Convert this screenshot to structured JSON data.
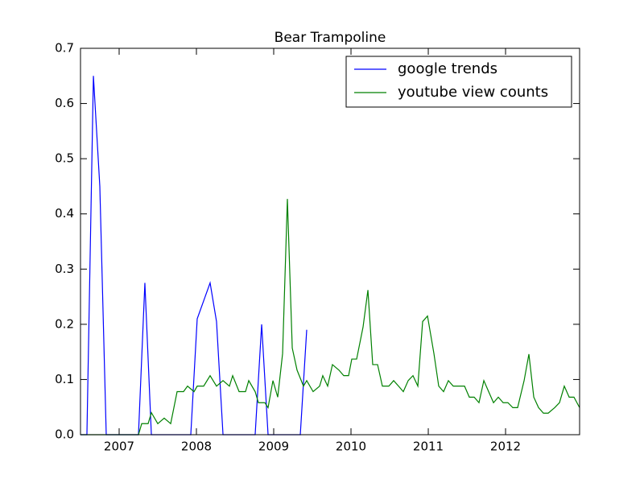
{
  "chart_data": {
    "type": "line",
    "title": "Bear Trampoline",
    "xlim": [
      2006.5,
      2012.958
    ],
    "xticks": [
      2007,
      2008,
      2009,
      2010,
      2011,
      2012
    ],
    "ylim": [
      0,
      0.7
    ],
    "yticks": [
      {
        "value": 0,
        "label": "0.0"
      },
      0.1,
      0.2,
      0.3,
      0.4,
      0.5,
      0.6,
      0.7
    ],
    "legend": "upper right",
    "grid": false,
    "series": [
      {
        "name": "google trends",
        "color": "#0000ff",
        "x": [
          2006.5,
          2006.583,
          2006.667,
          2006.75,
          2006.833,
          2007.25,
          2007.333,
          2007.417,
          2007.927,
          2008.01,
          2008.177,
          2008.26,
          2008.344,
          2008.76,
          2008.844,
          2008.927,
          2009.344,
          2009.427
        ],
        "values": [
          0,
          0,
          0.65,
          0.45,
          0,
          0,
          0.275,
          0,
          0,
          0.21,
          0.275,
          0.205,
          0,
          0,
          0.2,
          0,
          0,
          0.19
        ]
      },
      {
        "name": "youtube view counts",
        "color": "#008000",
        "x": [
          2006.5,
          2007.25,
          2007.292,
          2007.375,
          2007.417,
          2007.5,
          2007.583,
          2007.667,
          2007.75,
          2007.833,
          2007.885,
          2007.969,
          2008.01,
          2008.094,
          2008.177,
          2008.26,
          2008.344,
          2008.427,
          2008.469,
          2008.552,
          2008.635,
          2008.677,
          2008.76,
          2008.802,
          2008.885,
          2008.927,
          2008.99,
          2009.052,
          2009.115,
          2009.177,
          2009.24,
          2009.302,
          2009.385,
          2009.427,
          2009.51,
          2009.594,
          2009.635,
          2009.698,
          2009.76,
          2009.844,
          2009.906,
          2009.969,
          2010.01,
          2010.073,
          2010.156,
          2010.219,
          2010.281,
          2010.344,
          2010.406,
          2010.49,
          2010.552,
          2010.615,
          2010.677,
          2010.74,
          2010.802,
          2010.865,
          2010.927,
          2010.99,
          2011.073,
          2011.135,
          2011.198,
          2011.26,
          2011.323,
          2011.385,
          2011.469,
          2011.531,
          2011.594,
          2011.656,
          2011.719,
          2011.781,
          2011.844,
          2011.906,
          2011.969,
          2012.031,
          2012.094,
          2012.156,
          2012.24,
          2012.302,
          2012.365,
          2012.427,
          2012.49,
          2012.552,
          2012.635,
          2012.698,
          2012.76,
          2012.823,
          2012.885,
          2012.958
        ],
        "values": [
          0,
          0,
          0.02,
          0.02,
          0.04,
          0.02,
          0.03,
          0.02,
          0.078,
          0.078,
          0.088,
          0.078,
          0.088,
          0.088,
          0.107,
          0.088,
          0.098,
          0.088,
          0.107,
          0.078,
          0.078,
          0.098,
          0.078,
          0.058,
          0.058,
          0.049,
          0.098,
          0.068,
          0.147,
          0.427,
          0.157,
          0.117,
          0.088,
          0.098,
          0.078,
          0.088,
          0.107,
          0.088,
          0.127,
          0.117,
          0.107,
          0.107,
          0.137,
          0.137,
          0.195,
          0.262,
          0.127,
          0.127,
          0.088,
          0.088,
          0.098,
          0.088,
          0.078,
          0.098,
          0.107,
          0.088,
          0.205,
          0.215,
          0.147,
          0.088,
          0.078,
          0.098,
          0.088,
          0.088,
          0.088,
          0.068,
          0.068,
          0.058,
          0.098,
          0.078,
          0.058,
          0.068,
          0.058,
          0.058,
          0.049,
          0.049,
          0.098,
          0.146,
          0.068,
          0.049,
          0.039,
          0.039,
          0.049,
          0.058,
          0.088,
          0.068,
          0.068,
          0.049
        ]
      }
    ]
  }
}
